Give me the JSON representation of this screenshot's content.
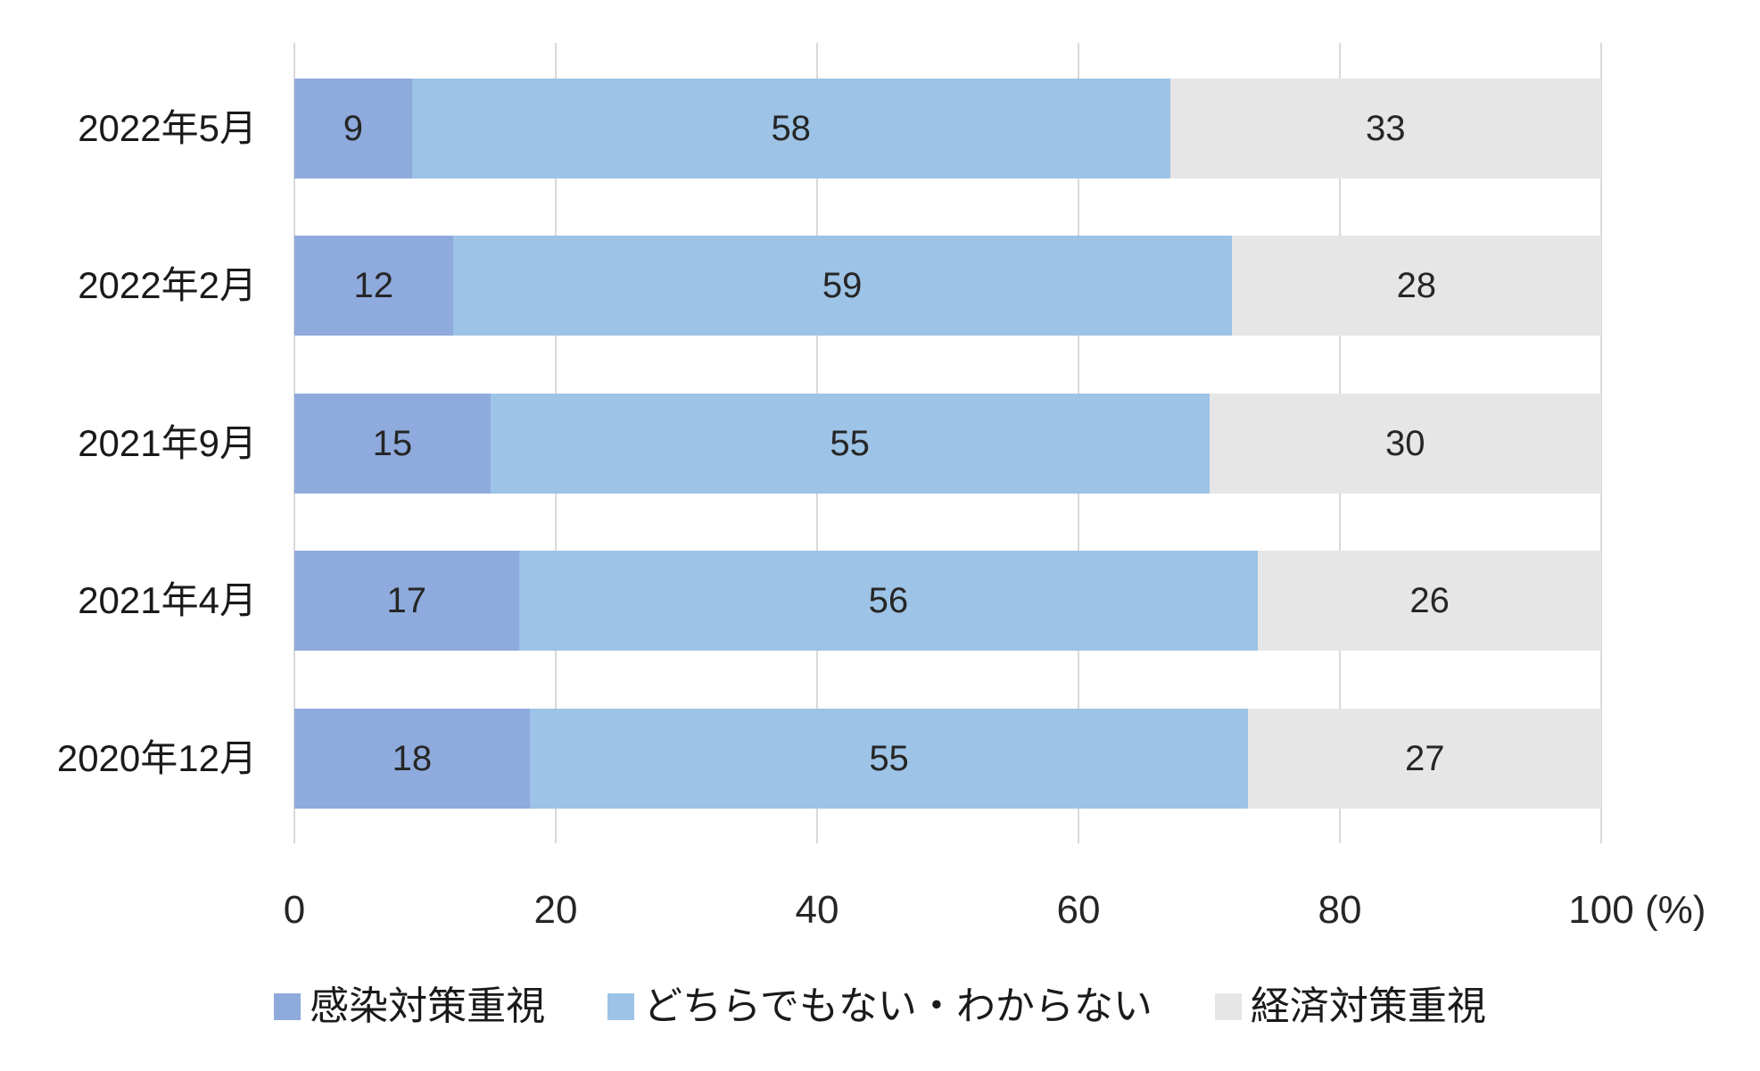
{
  "chart_data": {
    "type": "bar",
    "variant": "horizontal-stacked-100",
    "categories": [
      "2022年5月",
      "2022年2月",
      "2021年9月",
      "2021年4月",
      "2020年12月"
    ],
    "series": [
      {
        "name": "感染対策重視",
        "color": "#8FAADC",
        "values": [
          9,
          12,
          15,
          17,
          18
        ]
      },
      {
        "name": "どちらでもない・わからない",
        "color": "#9DC3E6",
        "values": [
          58,
          59,
          55,
          56,
          55
        ]
      },
      {
        "name": "経済対策重視",
        "color": "#E7E6E6",
        "values": [
          33,
          28,
          30,
          26,
          27
        ]
      }
    ],
    "x_ticks": [
      "0",
      "20",
      "40",
      "60",
      "80",
      "100"
    ],
    "xlim": [
      0,
      100
    ],
    "xlabel_unit": "(%)",
    "grid": "vertical",
    "gridline_color": "#D9D9D9",
    "legend_position": "bottom"
  }
}
